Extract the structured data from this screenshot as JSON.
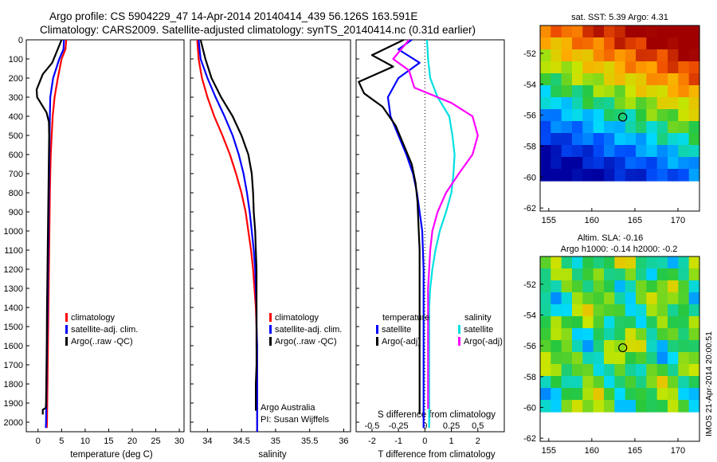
{
  "header": {
    "line1": "Argo profile: CS 5904229_47 14-Apr-2014 20140414_439 56.126S 163.591E",
    "line2": "Climatology: CARS2009. Satellite-adjusted climatology: synTS_20140414.nc (0.31d earlier)"
  },
  "colors": {
    "climatology": "#ff0000",
    "satellite": "#0000ff",
    "argo": "#000000",
    "salinity_sat": "#00e0e0",
    "salinity_argo": "#ff00ff"
  },
  "chart_data": [
    {
      "id": "temperature",
      "type": "line",
      "xlabel": "temperature (deg C)",
      "ylabel": "",
      "xlim": [
        -2.5,
        31
      ],
      "ylim": [
        2050,
        0
      ],
      "xticks": [
        "0",
        "5",
        "10",
        "15",
        "20",
        "25",
        "30"
      ],
      "yticks": [
        "0",
        "100",
        "200",
        "300",
        "400",
        "500",
        "600",
        "700",
        "800",
        "900",
        "1000",
        "1100",
        "1200",
        "1300",
        "1400",
        "1500",
        "1600",
        "1700",
        "1800",
        "1900",
        "2000"
      ],
      "legend": [
        "climatology",
        "satellite-adj. clim.",
        "Argo(..raw -QC)"
      ],
      "series": [
        {
          "name": "climatology",
          "color": "#ff0000",
          "x": [
            6.0,
            5.8,
            5.0,
            4.2,
            3.5,
            3.1,
            2.9,
            2.7,
            2.6,
            2.5,
            2.45,
            2.4,
            2.35,
            2.3,
            2.25,
            2.2,
            2.15,
            2.1,
            2.05,
            2.0,
            1.95,
            1.9,
            1.85
          ],
          "y": [
            0,
            50,
            100,
            200,
            300,
            400,
            500,
            600,
            700,
            800,
            900,
            1000,
            1100,
            1200,
            1300,
            1400,
            1500,
            1600,
            1700,
            1800,
            1900,
            2000,
            2030
          ]
        },
        {
          "name": "satellite-adj. clim.",
          "color": "#0000ff",
          "x": [
            5.5,
            5.4,
            4.5,
            3.2,
            2.6,
            2.5,
            2.45,
            2.4,
            2.35,
            2.3,
            2.25,
            2.2,
            2.15,
            2.1,
            2.05,
            2.0,
            1.95,
            1.9,
            1.85,
            1.8,
            1.75,
            1.7,
            1.65
          ],
          "y": [
            0,
            50,
            100,
            200,
            300,
            400,
            500,
            600,
            700,
            800,
            900,
            1000,
            1100,
            1200,
            1300,
            1400,
            1500,
            1600,
            1700,
            1800,
            1900,
            2000,
            2030
          ]
        },
        {
          "name": "Argo(..raw -QC)",
          "color": "#000000",
          "x": [
            5.0,
            4.0,
            3.0,
            1.0,
            -0.3,
            -0.2,
            1.8,
            2.3,
            2.35,
            2.3,
            2.25,
            2.2,
            2.15,
            2.1,
            2.05,
            2.0,
            1.9,
            1.85,
            1.8,
            1.75,
            1.7,
            1.65,
            1.0,
            1.0
          ],
          "y": [
            0,
            60,
            120,
            180,
            260,
            300,
            380,
            430,
            500,
            600,
            700,
            800,
            900,
            1000,
            1100,
            1200,
            1400,
            1600,
            1700,
            1800,
            1900,
            1925,
            1935,
            1960
          ]
        }
      ]
    },
    {
      "id": "salinity",
      "type": "line",
      "xlabel": "salinity",
      "xlim": [
        33.75,
        36.1
      ],
      "ylim": [
        2050,
        0
      ],
      "xticks": [
        "34",
        "34.5",
        "35",
        "35.5",
        "36"
      ],
      "legend": [
        "climatology",
        "satellite-adj. clim.",
        "Argo(..raw -QC)"
      ],
      "footer": [
        "Argo Australia",
        "PI: Susan Wijffels"
      ],
      "series": [
        {
          "name": "climatology",
          "color": "#ff0000",
          "x": [
            33.85,
            33.87,
            33.92,
            34.0,
            34.1,
            34.22,
            34.33,
            34.42,
            34.5,
            34.56,
            34.6,
            34.64,
            34.67,
            34.69,
            34.71,
            34.72,
            34.72,
            34.73,
            34.73,
            34.73,
            34.73
          ],
          "y": [
            0,
            100,
            200,
            300,
            400,
            500,
            600,
            700,
            800,
            900,
            1000,
            1100,
            1200,
            1300,
            1400,
            1500,
            1600,
            1700,
            1800,
            1900,
            2050
          ]
        },
        {
          "name": "satellite-adj. clim.",
          "color": "#0000ff",
          "x": [
            33.87,
            33.9,
            34.0,
            34.12,
            34.25,
            34.37,
            34.46,
            34.53,
            34.58,
            34.62,
            34.65,
            34.68,
            34.7,
            34.71,
            34.72,
            34.72,
            34.73,
            34.73,
            34.73,
            34.73
          ],
          "y": [
            0,
            100,
            200,
            300,
            400,
            500,
            600,
            700,
            800,
            900,
            1000,
            1100,
            1200,
            1300,
            1400,
            1500,
            1600,
            1700,
            1800,
            2050
          ]
        },
        {
          "name": "Argo(..raw -QC)",
          "color": "#000000",
          "x": [
            33.9,
            33.97,
            34.06,
            34.2,
            34.37,
            34.5,
            34.6,
            34.65,
            34.67,
            34.68,
            34.7,
            34.71,
            34.72,
            34.72,
            34.72,
            34.72,
            34.72,
            34.72,
            34.71,
            34.71
          ],
          "y": [
            0,
            100,
            200,
            300,
            400,
            500,
            600,
            700,
            800,
            900,
            1000,
            1100,
            1200,
            1300,
            1400,
            1500,
            1600,
            1700,
            1800,
            1940
          ]
        }
      ]
    },
    {
      "id": "difference",
      "type": "line",
      "xlabel": "T difference from climatology",
      "xlabel_top": "S difference from climatology",
      "xlim": [
        -2.6,
        3.0
      ],
      "ylim": [
        2050,
        0
      ],
      "xticks_T": [
        "-2",
        "-1",
        "0",
        "1",
        "2"
      ],
      "xticks_S": [
        "-0.5",
        "-0.25",
        "0",
        "0.25",
        "0.5"
      ],
      "legend_T": {
        "title": "temperature",
        "items": [
          "satellite",
          "Argo(-adj)"
        ]
      },
      "legend_S": {
        "title": "salinity",
        "items": [
          "satellite",
          "Argo(-adj)"
        ]
      },
      "series": [
        {
          "name": "temperature satellite",
          "color": "#0000ff",
          "x": [
            -0.5,
            -1.0,
            -0.2,
            -1.0,
            -1.4,
            -1.3,
            -1.0,
            -0.7,
            -0.45,
            -0.3,
            -0.2,
            -0.1,
            -0.05,
            -0.05,
            -0.05,
            -0.05,
            -0.05,
            -0.05,
            -0.05
          ],
          "y": [
            0,
            50,
            120,
            200,
            300,
            400,
            500,
            600,
            700,
            800,
            900,
            1000,
            1200,
            1400,
            1500,
            1600,
            1800,
            1900,
            2030
          ]
        },
        {
          "name": "temperature Argo(-adj)",
          "color": "#000000",
          "x": [
            -0.8,
            -2.0,
            -1.2,
            -2.5,
            -2.3,
            -1.6,
            -1.1,
            -0.8,
            -0.5,
            -0.35,
            -0.28,
            -0.25,
            -0.2,
            -0.2,
            -0.2,
            -0.2,
            -0.2,
            -0.2,
            -0.2,
            -0.2
          ],
          "y": [
            0,
            80,
            140,
            220,
            280,
            350,
            450,
            550,
            650,
            750,
            850,
            950,
            1100,
            1300,
            1400,
            1500,
            1700,
            1800,
            1900,
            1960
          ]
        },
        {
          "name": "salinity satellite",
          "color": "#00e0e0",
          "x": [
            0.02,
            0.03,
            0.05,
            0.12,
            0.23,
            0.26,
            0.28,
            0.27,
            0.25,
            0.2,
            0.14,
            0.1,
            0.07,
            0.05,
            0.04,
            0.04,
            0.04,
            0.04,
            0.04,
            0.04
          ],
          "y": [
            0,
            100,
            200,
            300,
            400,
            500,
            600,
            700,
            800,
            900,
            1000,
            1100,
            1200,
            1300,
            1400,
            1500,
            1600,
            1700,
            1800,
            2030
          ]
        },
        {
          "name": "salinity Argo(-adj)",
          "color": "#ff00ff",
          "x": [
            -0.15,
            -0.3,
            -0.15,
            -0.1,
            0.25,
            0.45,
            0.5,
            0.45,
            0.32,
            0.2,
            0.12,
            0.07,
            0.05,
            0.04,
            0.03,
            0.03,
            0.03,
            0.03,
            0.03
          ],
          "y": [
            0,
            100,
            160,
            250,
            330,
            400,
            500,
            600,
            700,
            800,
            900,
            1000,
            1100,
            1200,
            1300,
            1400,
            1600,
            1800,
            1930
          ]
        }
      ]
    },
    {
      "id": "sst-map",
      "type": "heatmap",
      "title": "sat. SST: 5.39 Argo: 4.31",
      "xticks": [
        "155",
        "160",
        "165",
        "170"
      ],
      "yticks": [
        "-52",
        "-54",
        "-56",
        "-58",
        "-60",
        "-62"
      ],
      "xlim": [
        154,
        172.5
      ],
      "ylim": [
        -62.2,
        -50.2
      ],
      "marker": {
        "lon": 163.591,
        "lat": -56.126
      }
    },
    {
      "id": "sla-map",
      "type": "heatmap",
      "title": "Altim. SLA: -0.16",
      "subtitle": "Argo h1000: -0.14 h2000: -0.2",
      "xticks": [
        "155",
        "160",
        "165",
        "170"
      ],
      "yticks": [
        "-52",
        "-54",
        "-56",
        "-58",
        "-60",
        "-62"
      ],
      "xlim": [
        154,
        172.5
      ],
      "ylim": [
        -62.2,
        -50.2
      ],
      "marker": {
        "lon": 163.591,
        "lat": -56.126
      }
    }
  ],
  "footer": {
    "stamp": "IMOS 21-Apr-2014 20:00:51"
  }
}
